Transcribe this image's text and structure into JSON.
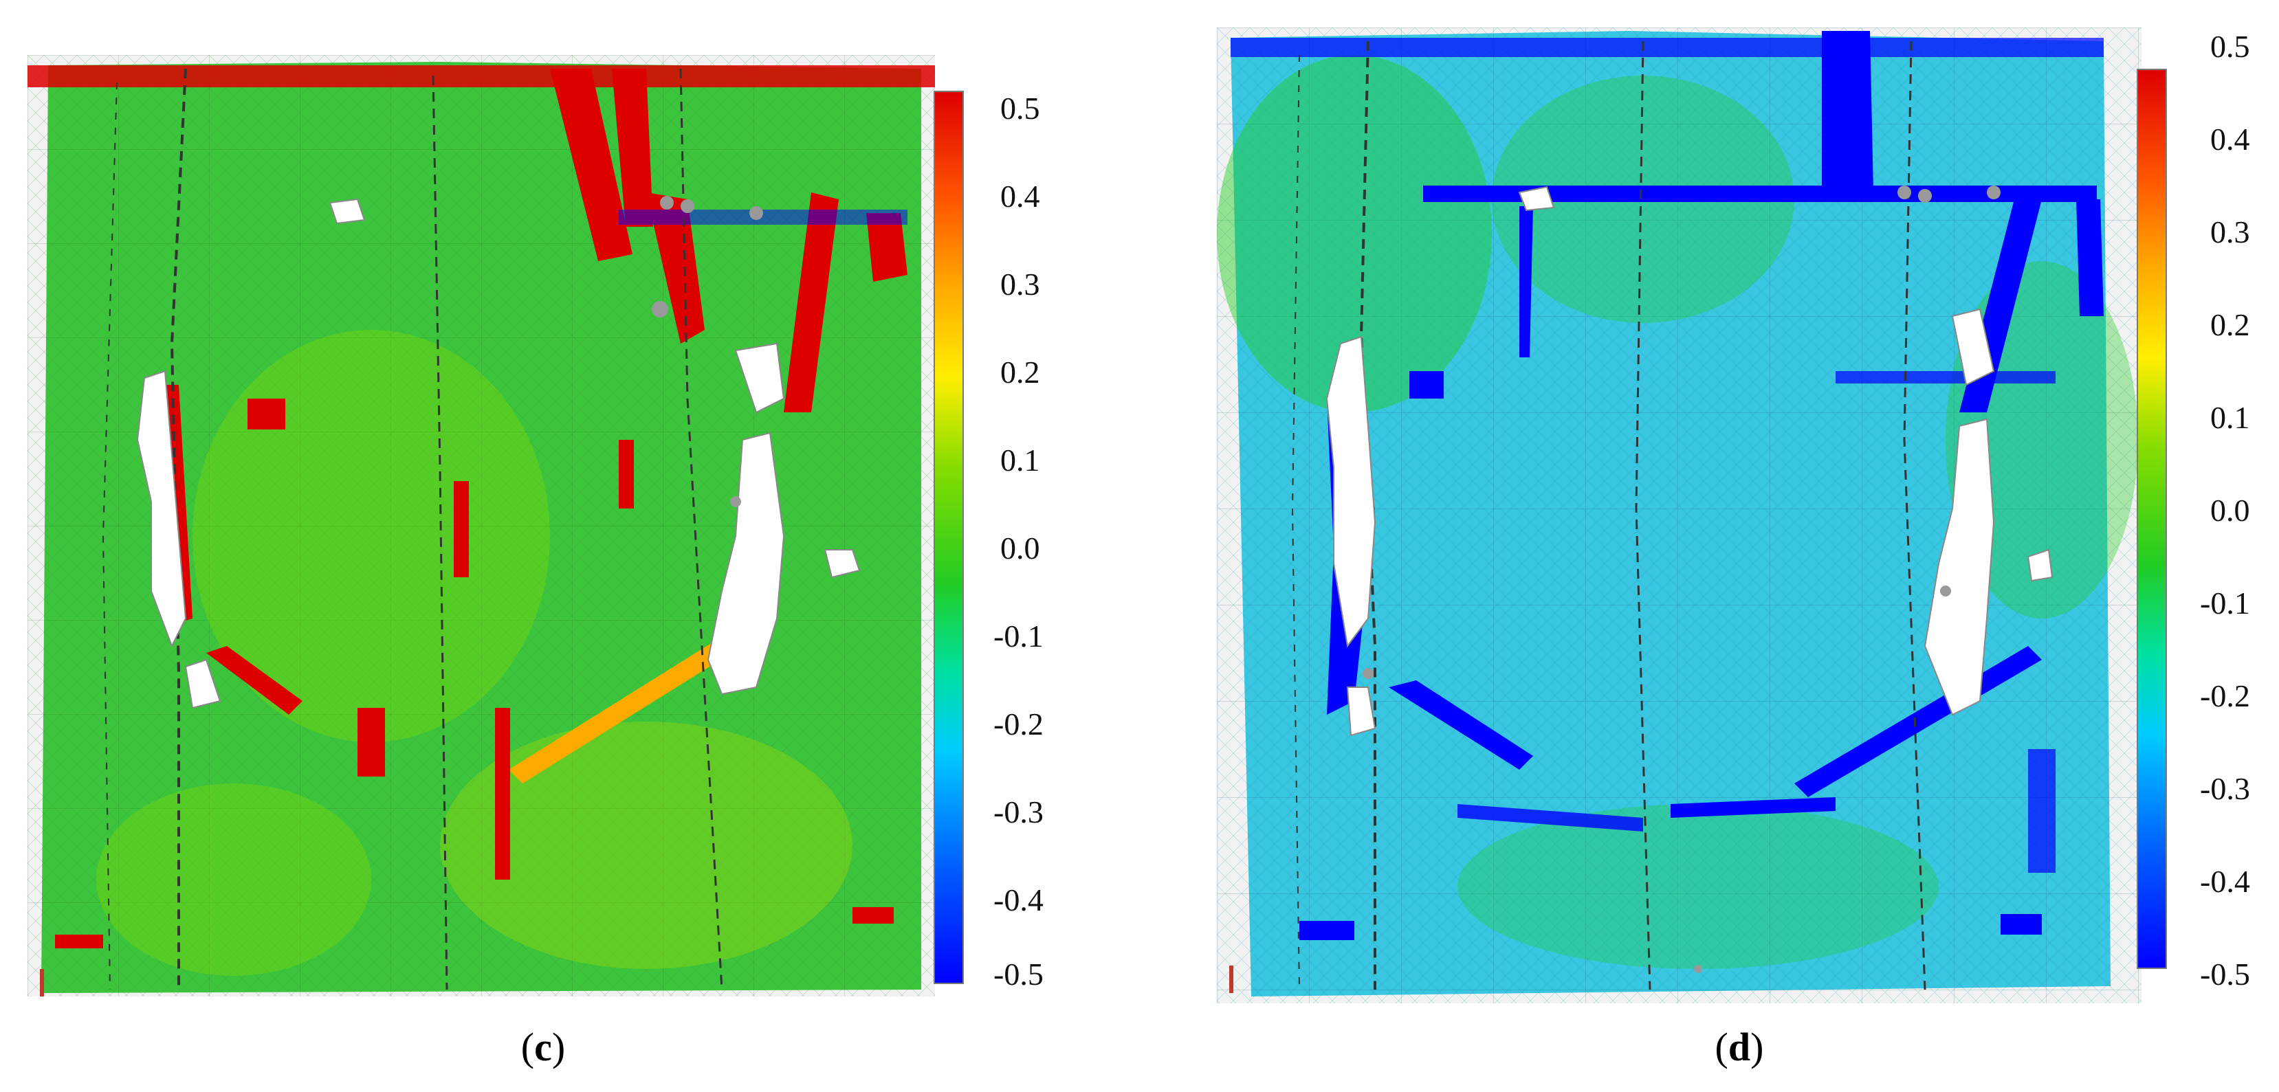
{
  "panels": [
    {
      "id": "c",
      "label": "c",
      "colorbar_ticks": [
        "0.5",
        "0.4",
        "0.3",
        "0.2",
        "0.1",
        "0.0",
        "-0.1",
        "-0.2",
        "-0.3",
        "-0.4",
        "-0.5"
      ],
      "dominant_color": "#3cc43c"
    },
    {
      "id": "d",
      "label": "d",
      "colorbar_ticks": [
        "0.5",
        "0.4",
        "0.3",
        "0.2",
        "0.1",
        "0.0",
        "-0.1",
        "-0.2",
        "-0.3",
        "-0.4",
        "-0.5"
      ],
      "dominant_color": "#39c6e0"
    }
  ],
  "colormap": [
    "#0000ff",
    "#0066ff",
    "#00ccff",
    "#00e0a0",
    "#22cc22",
    "#88dd00",
    "#ffee00",
    "#ffaa00",
    "#ff5500",
    "#dd0000"
  ]
}
